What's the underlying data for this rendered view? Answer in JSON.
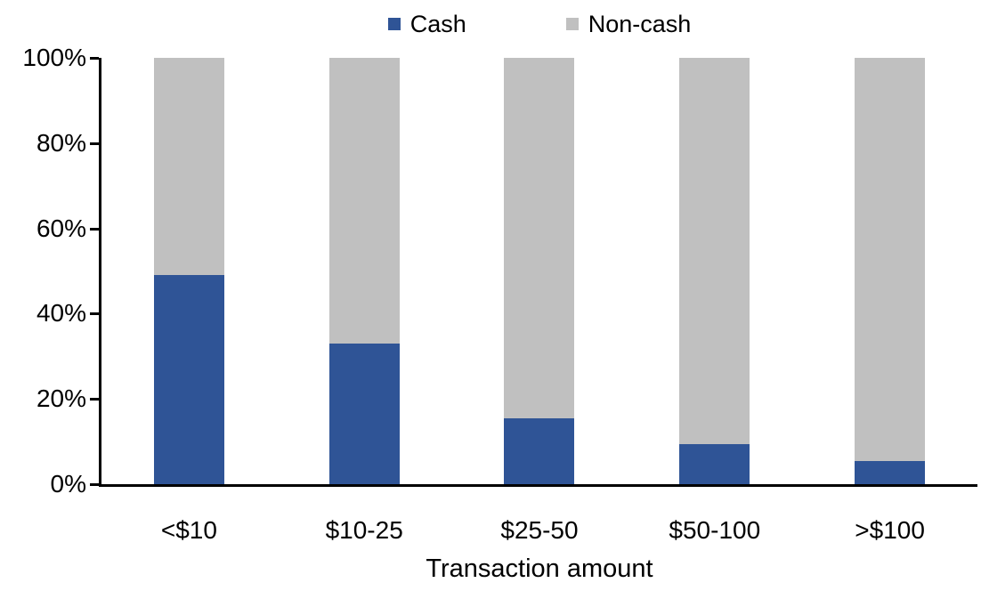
{
  "chart_data": {
    "type": "bar",
    "subtype": "stacked-100-percent",
    "title": "",
    "xlabel": "Transaction amount",
    "ylabel": "",
    "categories": [
      "<$10",
      "$10-25",
      "$25-50",
      "$50-100",
      ">$100"
    ],
    "series": [
      {
        "name": "Cash",
        "color": "#2F5496",
        "values": [
          49,
          33,
          15.5,
          9.5,
          5.5
        ]
      },
      {
        "name": "Non-cash",
        "color": "#C0C0C0",
        "values": [
          51,
          67,
          84.5,
          90.5,
          94.5
        ]
      }
    ],
    "ylim": [
      0,
      100
    ],
    "yticks": [
      {
        "value": 0,
        "label": "0%"
      },
      {
        "value": 20,
        "label": "20%"
      },
      {
        "value": 40,
        "label": "40%"
      },
      {
        "value": 60,
        "label": "60%"
      },
      {
        "value": 80,
        "label": "80%"
      },
      {
        "value": 100,
        "label": "100%"
      }
    ],
    "grid": false,
    "legend_position": "top-center",
    "axis_color": "#000000",
    "background": "#FFFFFF"
  }
}
